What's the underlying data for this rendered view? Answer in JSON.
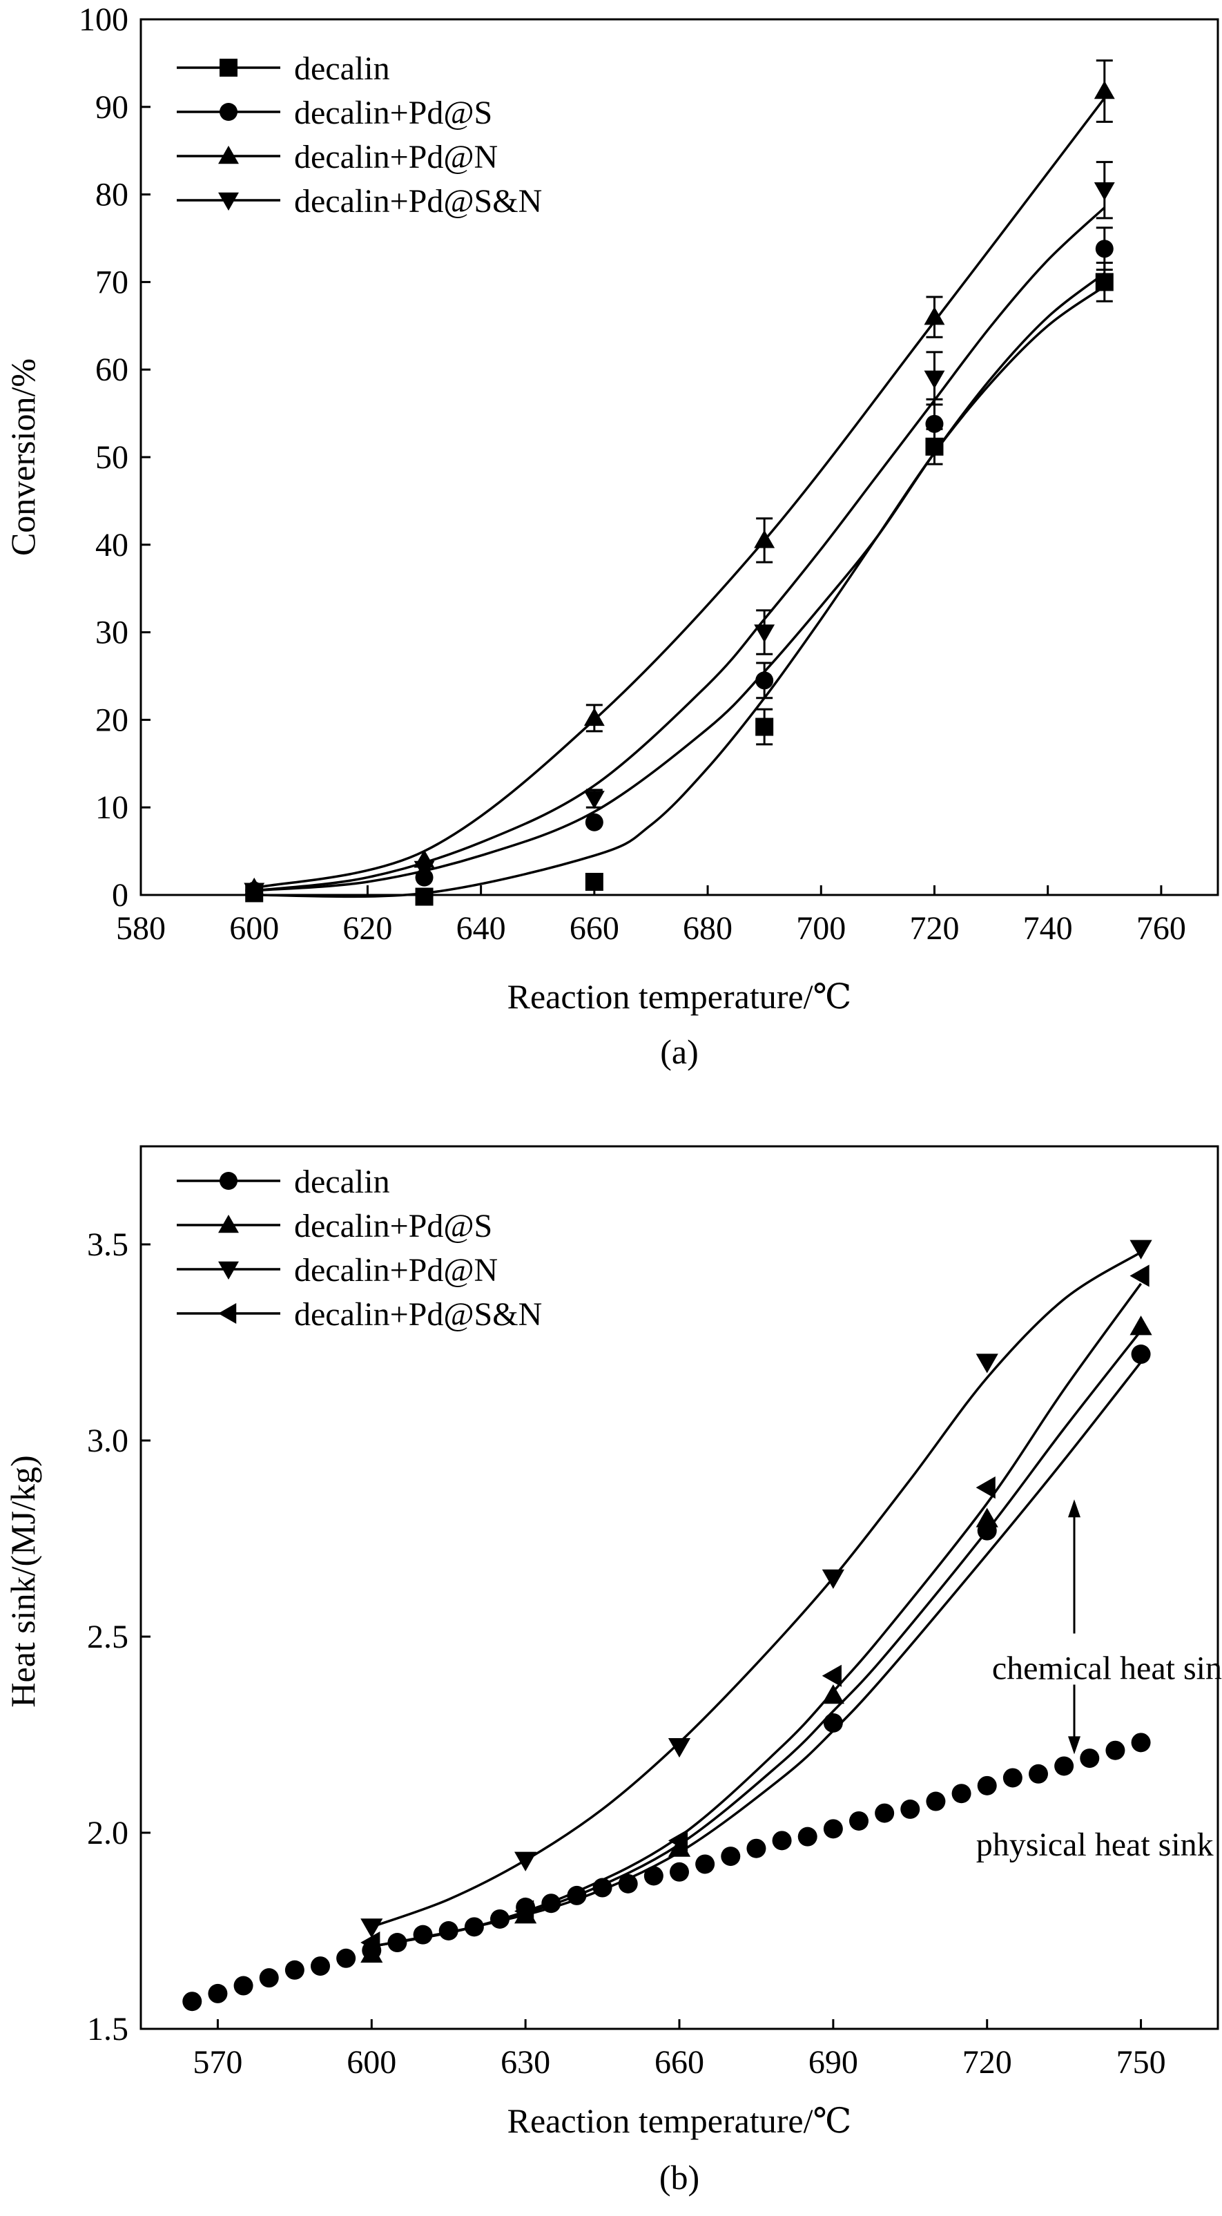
{
  "chart_data": [
    {
      "type": "line",
      "title": "",
      "caption": "(a)",
      "xlabel": "Reaction temperature/℃",
      "ylabel": "Conversion/%",
      "xlim": [
        580,
        770
      ],
      "ylim": [
        0,
        100
      ],
      "xticks": [
        580,
        600,
        620,
        640,
        660,
        680,
        700,
        720,
        740,
        760
      ],
      "yticks": [
        0,
        10,
        20,
        30,
        40,
        50,
        60,
        70,
        80,
        90,
        100
      ],
      "legend_position": "top-left",
      "series": [
        {
          "name": "decalin",
          "marker": "square",
          "x": [
            600,
            630,
            660,
            690,
            720,
            750
          ],
          "y": [
            0.2,
            -0.2,
            1.5,
            19.2,
            51.2,
            70.0
          ],
          "err": [
            0,
            0,
            0,
            2.0,
            2.0,
            2.2
          ],
          "fit_x": [
            600,
            630,
            660,
            670,
            680,
            690,
            700,
            710,
            720,
            730,
            740,
            750
          ],
          "fit_y": [
            0,
            0.2,
            4.5,
            8.0,
            14.5,
            22.5,
            31.5,
            41.0,
            50.5,
            58.5,
            65.0,
            69.5
          ]
        },
        {
          "name": "decalin+Pd@S",
          "marker": "circle",
          "x": [
            600,
            630,
            660,
            690,
            720,
            750
          ],
          "y": [
            0.5,
            2.0,
            8.3,
            24.5,
            53.8,
            73.8
          ],
          "err": [
            0,
            0,
            0,
            2.0,
            2.8,
            2.4
          ],
          "fit_x": [
            600,
            620,
            640,
            660,
            680,
            690,
            700,
            710,
            720,
            730,
            740,
            750
          ],
          "fit_y": [
            0.5,
            1.5,
            4.5,
            9.5,
            19.0,
            25.5,
            33.0,
            41.0,
            50.5,
            59.0,
            66.0,
            71.0
          ]
        },
        {
          "name": "decalin+Pd@N",
          "marker": "triangle-up",
          "x": [
            600,
            630,
            660,
            690,
            720,
            750
          ],
          "y": [
            0.8,
            4.0,
            20.2,
            40.5,
            66.0,
            91.8
          ],
          "err": [
            0,
            0,
            1.5,
            2.5,
            2.3,
            3.5
          ],
          "fit_x": [
            600,
            630,
            660,
            690,
            720,
            750
          ],
          "fit_y": [
            0.8,
            5.0,
            20.0,
            40.5,
            65.5,
            91.0
          ]
        },
        {
          "name": "decalin+Pd@S&N",
          "marker": "triangle-down",
          "x": [
            600,
            630,
            660,
            690,
            720,
            750
          ],
          "y": [
            0.5,
            3.0,
            11.0,
            30.0,
            59.0,
            80.5
          ],
          "err": [
            0,
            0,
            1.0,
            2.5,
            3.0,
            3.2
          ],
          "fit_x": [
            600,
            620,
            640,
            660,
            680,
            690,
            700,
            710,
            720,
            730,
            740,
            750
          ],
          "fit_y": [
            0.5,
            2.0,
            6.0,
            12.5,
            24.0,
            31.5,
            39.5,
            48.0,
            56.5,
            65.0,
            72.5,
            78.5
          ]
        }
      ]
    },
    {
      "type": "line",
      "title": "",
      "caption": "(b)",
      "xlabel": "Reaction temperature/℃",
      "ylabel": "Heat sink/(MJ/kg)",
      "xlim": [
        555,
        765
      ],
      "ylim": [
        1.5,
        3.75
      ],
      "xticks": [
        570,
        600,
        630,
        660,
        690,
        720,
        750
      ],
      "yticks": [
        "1.5",
        "2.0",
        "2.5",
        "3.0",
        "3.5"
      ],
      "legend_position": "top-left",
      "annotations": {
        "chemical": "chemical heat sink",
        "physical": "physical heat sink",
        "arrow_x": 737,
        "arrow_top": 2.85,
        "arrow_bottom": 2.2,
        "chemical_y": 2.42,
        "physical_y": 1.97
      },
      "series": [
        {
          "name": "decalin",
          "marker": "circle",
          "x": [
            565,
            570,
            575,
            580,
            585,
            590,
            595,
            600,
            605,
            610,
            615,
            620,
            625,
            630,
            635,
            640,
            645,
            650,
            655,
            660,
            665,
            670,
            675,
            680,
            685,
            690,
            695,
            700,
            705,
            710,
            715,
            720,
            725,
            730,
            735,
            740,
            745,
            750
          ],
          "y": [
            1.57,
            1.59,
            1.61,
            1.63,
            1.65,
            1.66,
            1.68,
            1.7,
            1.72,
            1.74,
            1.75,
            1.76,
            1.78,
            1.81,
            1.82,
            1.84,
            1.86,
            1.87,
            1.89,
            1.9,
            1.92,
            1.94,
            1.96,
            1.98,
            1.99,
            2.01,
            2.03,
            2.05,
            2.06,
            2.08,
            2.1,
            2.12,
            2.14,
            2.15,
            2.17,
            2.19,
            2.21,
            2.23
          ],
          "extra_x": [
            690,
            720,
            750
          ],
          "extra_y": [
            2.28,
            2.77,
            3.22
          ],
          "fit_x": [
            600,
            620,
            640,
            660,
            680,
            690,
            700,
            720,
            735,
            750
          ],
          "fit_y": [
            1.71,
            1.76,
            1.83,
            1.95,
            2.14,
            2.26,
            2.4,
            2.71,
            2.95,
            3.2
          ]
        },
        {
          "name": "decalin+Pd@S",
          "marker": "triangle-up",
          "x": [
            600,
            630,
            660,
            690,
            720,
            750
          ],
          "y": [
            1.69,
            1.79,
            1.96,
            2.35,
            2.8,
            3.29
          ],
          "fit_x": [
            600,
            620,
            640,
            660,
            680,
            690,
            700,
            720,
            735,
            750
          ],
          "fit_y": [
            1.71,
            1.76,
            1.84,
            1.97,
            2.18,
            2.31,
            2.45,
            2.77,
            3.03,
            3.28
          ]
        },
        {
          "name": "decalin+Pd@N",
          "marker": "triangle-down",
          "x": [
            600,
            630,
            660,
            690,
            720,
            750
          ],
          "y": [
            1.76,
            1.93,
            2.22,
            2.65,
            3.2,
            3.49
          ],
          "fit_x": [
            600,
            615,
            630,
            645,
            660,
            675,
            690,
            705,
            720,
            735,
            750
          ],
          "fit_y": [
            1.76,
            1.83,
            1.93,
            2.06,
            2.23,
            2.43,
            2.65,
            2.9,
            3.16,
            3.36,
            3.48
          ]
        },
        {
          "name": "decalin+Pd@S&N",
          "marker": "triangle-left",
          "x": [
            600,
            630,
            660,
            690,
            720,
            750
          ],
          "y": [
            1.72,
            1.8,
            1.98,
            2.4,
            2.88,
            3.42
          ],
          "fit_x": [
            600,
            620,
            640,
            660,
            680,
            690,
            700,
            720,
            735,
            750
          ],
          "fit_y": [
            1.71,
            1.76,
            1.85,
            1.99,
            2.22,
            2.36,
            2.51,
            2.84,
            3.13,
            3.4
          ]
        }
      ]
    }
  ]
}
